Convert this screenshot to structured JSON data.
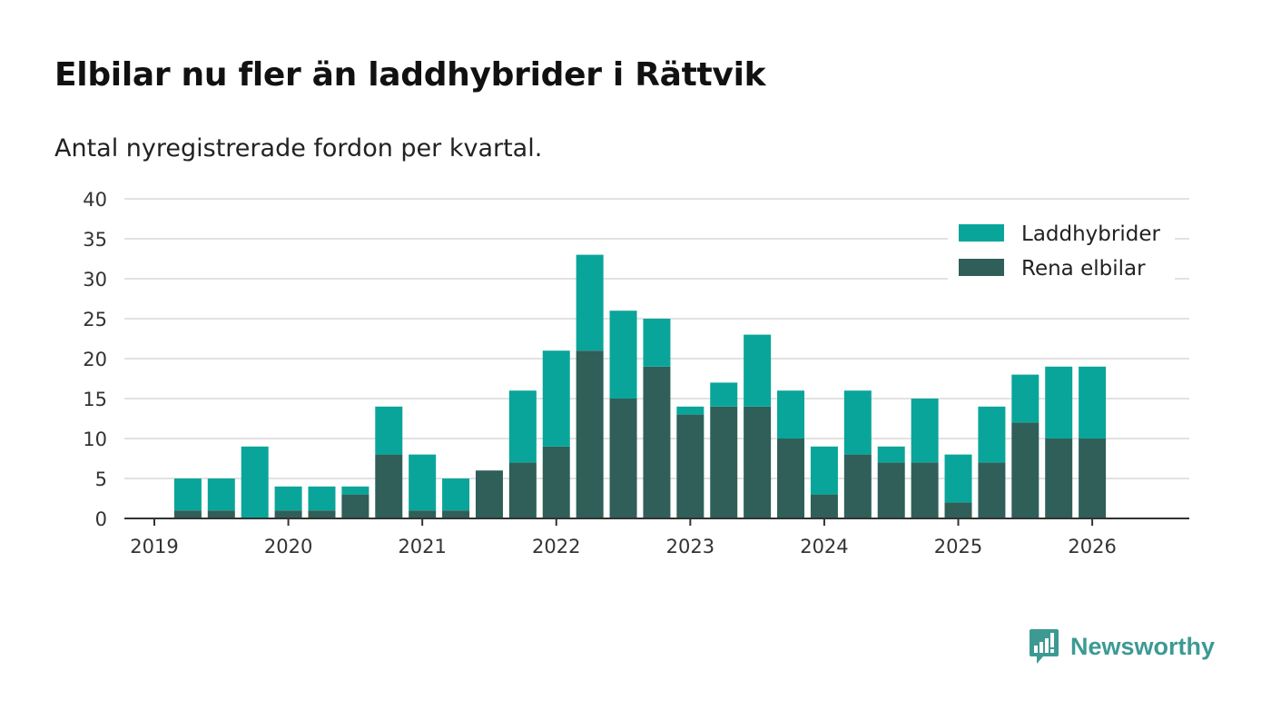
{
  "header": {
    "title": "Elbilar nu fler än laddhybrider i Rättvik",
    "subtitle": "Antal nyregistrerade fordon per kvartal."
  },
  "brand": {
    "name": "Newsworthy",
    "color": "#3d9a93"
  },
  "colors": {
    "laddhybrider": "#0aa59a",
    "rena_elbilar": "#2f5f58",
    "grid": "#d9d9d9",
    "axis": "#333333"
  },
  "chart_data": {
    "type": "bar",
    "stacked": true,
    "title": "Elbilar nu fler än laddhybrider i Rättvik",
    "subtitle": "Antal nyregistrerade fordon per kvartal.",
    "xlabel": "",
    "ylabel": "",
    "ylim": [
      0,
      40
    ],
    "yticks": [
      0,
      5,
      10,
      15,
      20,
      25,
      30,
      35,
      40
    ],
    "xticks": [
      "2019",
      "2020",
      "2021",
      "2022",
      "2023",
      "2024",
      "2025",
      "2026"
    ],
    "x_start": 2019.0,
    "x_end": 2026.25,
    "x_step": 0.25,
    "legend_position": "top-right",
    "grid": true,
    "categories": [
      "2019 Q2",
      "2019 Q3",
      "2019 Q4",
      "2020 Q1",
      "2020 Q2",
      "2020 Q3",
      "2020 Q4",
      "2021 Q1",
      "2021 Q2",
      "2021 Q3",
      "2021 Q4",
      "2022 Q1",
      "2022 Q2",
      "2022 Q3",
      "2022 Q4",
      "2023 Q1",
      "2023 Q2",
      "2023 Q3",
      "2023 Q4",
      "2024 Q1",
      "2024 Q2",
      "2024 Q3",
      "2024 Q4",
      "2025 Q1",
      "2025 Q2",
      "2025 Q3",
      "2025 Q4",
      "2026 Q1"
    ],
    "x": [
      2019.25,
      2019.5,
      2019.75,
      2020.0,
      2020.25,
      2020.5,
      2020.75,
      2021.0,
      2021.25,
      2021.5,
      2021.75,
      2022.0,
      2022.25,
      2022.5,
      2022.75,
      2023.0,
      2023.25,
      2023.5,
      2023.75,
      2024.0,
      2024.25,
      2024.5,
      2024.75,
      2025.0,
      2025.25,
      2025.5,
      2025.75,
      2026.0
    ],
    "series": [
      {
        "name": "Rena elbilar",
        "color": "#2f5f58",
        "values": [
          1,
          1,
          0,
          1,
          1,
          3,
          8,
          1,
          1,
          6,
          7,
          9,
          21,
          15,
          19,
          13,
          14,
          14,
          10,
          3,
          8,
          7,
          7,
          2,
          7,
          12,
          10,
          10
        ]
      },
      {
        "name": "Laddhybrider",
        "color": "#0aa59a",
        "values": [
          4,
          4,
          9,
          3,
          3,
          1,
          6,
          7,
          4,
          0,
          9,
          12,
          12,
          11,
          6,
          1,
          3,
          9,
          6,
          6,
          8,
          2,
          8,
          6,
          7,
          6,
          9,
          9
        ]
      }
    ],
    "legend": [
      "Laddhybrider",
      "Rena elbilar"
    ]
  }
}
